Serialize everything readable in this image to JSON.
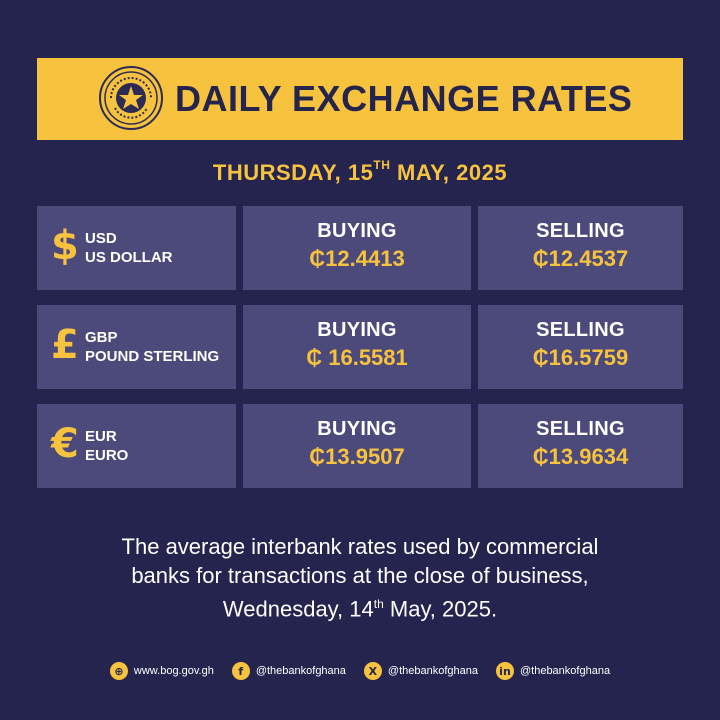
{
  "header": {
    "title": "DAILY EXCHANGE RATES",
    "seal_text": "BANK OF GHANA · EST. 1957"
  },
  "date": {
    "prefix": "THURSDAY, 15",
    "ordinal": "TH",
    "suffix": " MAY, 2025"
  },
  "rates": [
    {
      "symbol": "$",
      "code": "USD",
      "name": "US DOLLAR",
      "buying_label": "BUYING",
      "buying": "₵12.4413",
      "selling_label": "SELLING",
      "selling": "₵12.4537"
    },
    {
      "symbol": "£",
      "code": "GBP",
      "name": "POUND STERLING",
      "buying_label": "BUYING",
      "buying": "₵ 16.5581",
      "selling_label": "SELLING",
      "selling": "₵16.5759"
    },
    {
      "symbol": "€",
      "code": "EUR",
      "name": "EURO",
      "buying_label": "BUYING",
      "buying": "₵13.9507",
      "selling_label": "SELLING",
      "selling": "₵13.9634"
    }
  ],
  "footnote": {
    "line1": "The average interbank rates used by commercial",
    "line2": "banks for transactions at the close of business,",
    "line3_prefix": "Wednesday, 14",
    "line3_ordinal": "th",
    "line3_suffix": " May, 2025."
  },
  "socials": [
    {
      "icon": "globe-icon",
      "glyph": "⊕",
      "text": "www.bog.gov.gh"
    },
    {
      "icon": "facebook-icon",
      "glyph": "f",
      "text": "@thebankofghana"
    },
    {
      "icon": "x-icon",
      "glyph": "X",
      "text": "@thebankofghana"
    },
    {
      "icon": "linkedin-icon",
      "glyph": "in",
      "text": "@thebankofghana"
    }
  ],
  "colors": {
    "background": "#24244f",
    "accent": "#f7c23e",
    "cell": "#4c4a7b",
    "text": "#ffffff"
  }
}
